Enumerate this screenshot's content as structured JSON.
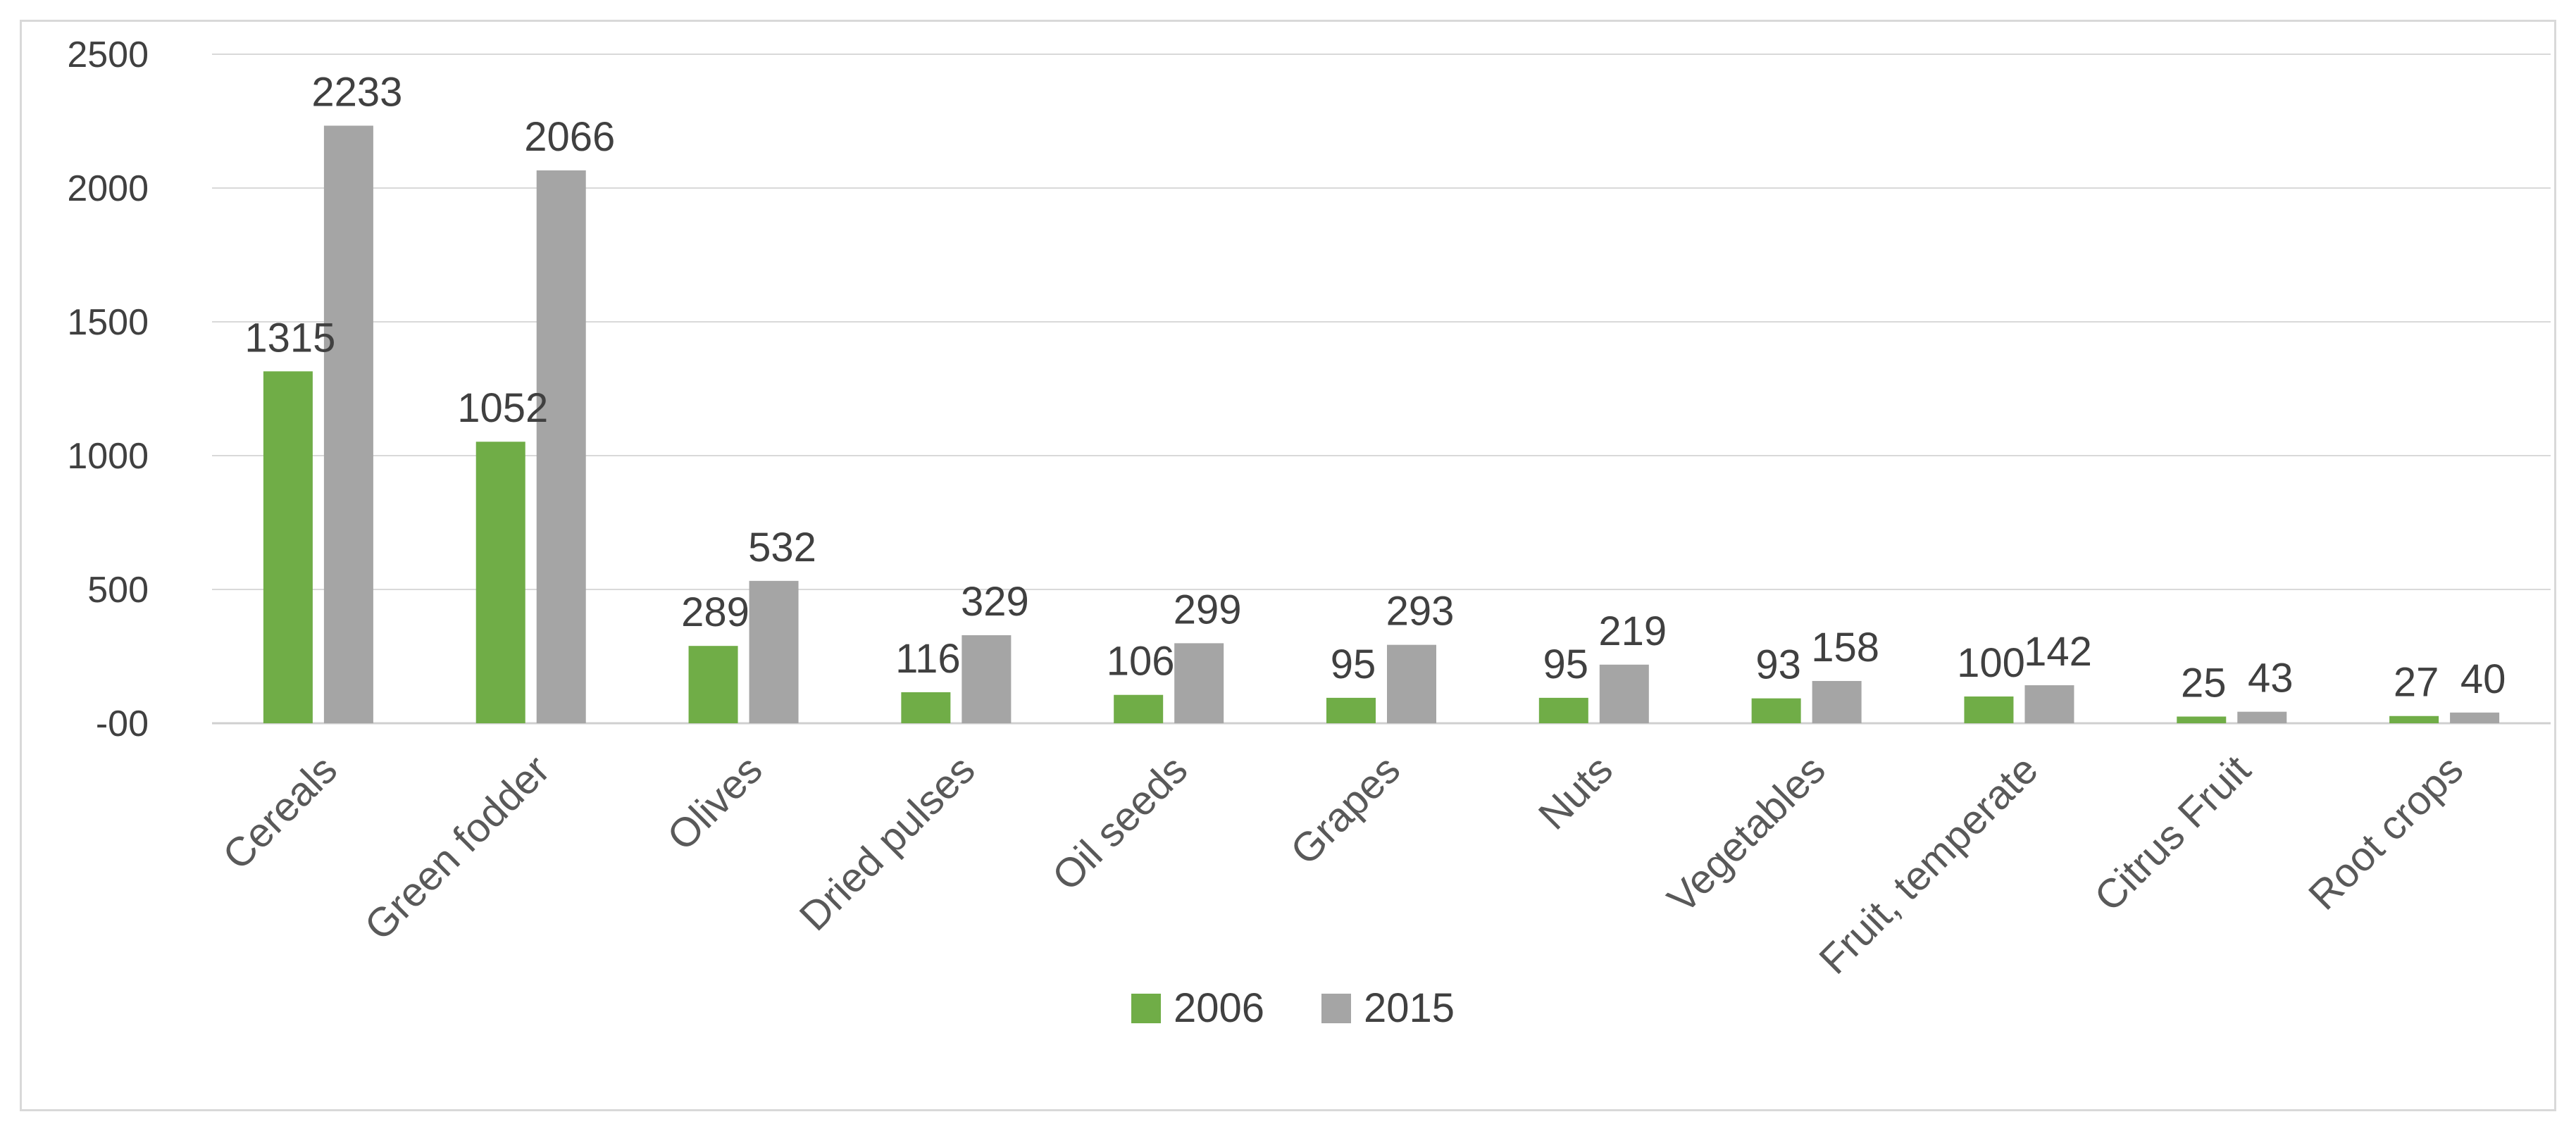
{
  "chart_data": {
    "type": "bar",
    "title": "",
    "xlabel": "",
    "ylabel": "",
    "ylim": [
      0,
      2500
    ],
    "yticks": [
      0,
      500,
      1000,
      1500,
      2000,
      2500
    ],
    "ytick_labels": [
      "-00",
      "500",
      "1000",
      "1500",
      "2000",
      "2500"
    ],
    "grid": true,
    "legend_position": "bottom",
    "categories": [
      "Cereals",
      "Green fodder",
      "Olives",
      "Dried pulses",
      "Oil seeds",
      "Grapes",
      "Nuts",
      "Vegetables",
      "Fruit, temperate",
      "Citrus Fruit",
      "Root crops"
    ],
    "series": [
      {
        "name": "2006",
        "color": "#70ad47",
        "values": [
          1315,
          1052,
          289,
          116,
          106,
          95,
          95,
          93,
          100,
          25,
          27
        ]
      },
      {
        "name": "2015",
        "color": "#a5a5a5",
        "values": [
          2233,
          2066,
          532,
          329,
          299,
          293,
          219,
          158,
          142,
          43,
          40
        ]
      }
    ]
  }
}
